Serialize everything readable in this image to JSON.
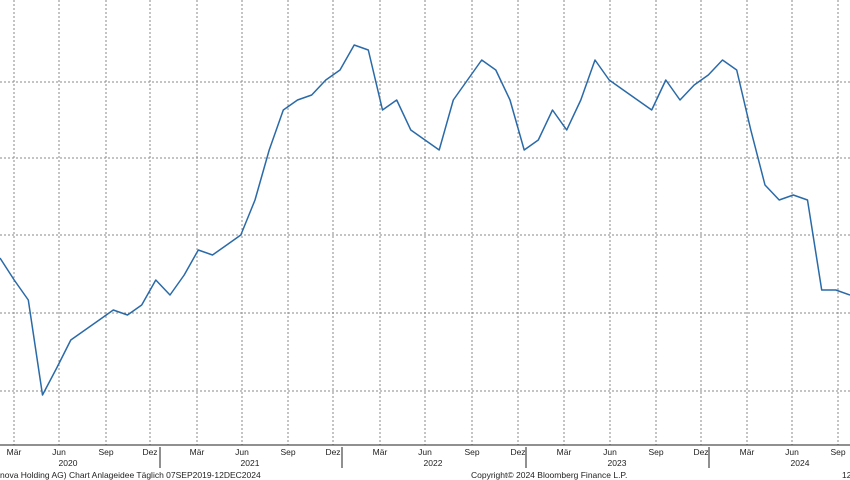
{
  "chart_data": {
    "type": "line",
    "title": "",
    "xlabel": "",
    "ylabel": "",
    "grid": true,
    "legend": "none",
    "month_ticks": [
      "Mär",
      "Jun",
      "Sep",
      "Dez",
      "Mär",
      "Jun",
      "Sep",
      "Dez",
      "Mär",
      "Jun",
      "Sep",
      "Dez",
      "Mär",
      "Jun",
      "Sep",
      "Dez",
      "Mär",
      "Jun",
      "Sep"
    ],
    "year_labels": [
      "2020",
      "2021",
      "2022",
      "2023",
      "2024"
    ],
    "series": [
      {
        "color": "#2a6aa8",
        "x": [
          "2019-12",
          "2020-01",
          "2020-02",
          "2020-03",
          "2020-04",
          "2020-05",
          "2020-06",
          "2020-07",
          "2020-08",
          "2020-09",
          "2020-10",
          "2020-11",
          "2020-12",
          "2021-01",
          "2021-02",
          "2021-03",
          "2021-04",
          "2021-05",
          "2021-06",
          "2021-07",
          "2021-08",
          "2021-09",
          "2021-10",
          "2021-11",
          "2021-12",
          "2022-01",
          "2022-02",
          "2022-03",
          "2022-04",
          "2022-05",
          "2022-06",
          "2022-07",
          "2022-08",
          "2022-09",
          "2022-10",
          "2022-11",
          "2022-12",
          "2023-01",
          "2023-02",
          "2023-03",
          "2023-04",
          "2023-05",
          "2023-06",
          "2023-07",
          "2023-08",
          "2023-09",
          "2023-10",
          "2023-11",
          "2023-12",
          "2024-01",
          "2024-02",
          "2024-03",
          "2024-04",
          "2024-05",
          "2024-06",
          "2024-07",
          "2024-08",
          "2024-09",
          "2024-10",
          "2024-11",
          "2024-12"
        ],
        "y": [
          258,
          280,
          300,
          395,
          368,
          340,
          330,
          320,
          310,
          315,
          305,
          280,
          295,
          275,
          250,
          255,
          245,
          235,
          200,
          150,
          110,
          100,
          95,
          80,
          70,
          45,
          50,
          110,
          100,
          130,
          140,
          150,
          100,
          80,
          60,
          70,
          100,
          150,
          140,
          110,
          130,
          100,
          60,
          80,
          90,
          100,
          110,
          80,
          100,
          85,
          75,
          60,
          70,
          130,
          185,
          200,
          195,
          200,
          290,
          290,
          295
        ]
      }
    ]
  },
  "footer": {
    "left": "nova Holding AG) Chart Anlageidee  Täglich 07SEP2019-12DEC2024",
    "center": "Copyright© 2024 Bloomberg Finance L.P.",
    "right": "12"
  }
}
